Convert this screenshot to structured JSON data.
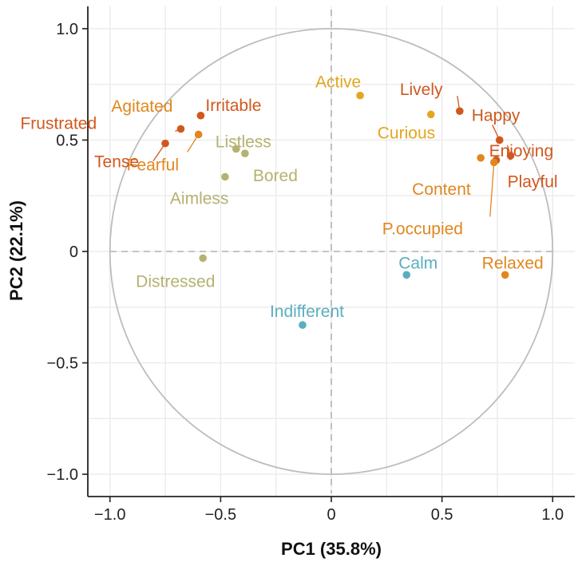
{
  "chart_data": {
    "type": "scatter",
    "title": "",
    "xlabel": "PC1 (35.8%)",
    "ylabel": "PC2 (22.1%)",
    "xlim": [
      -1.1,
      1.1
    ],
    "ylim": [
      -1.1,
      1.1
    ],
    "xticks": [
      -1.0,
      -0.5,
      0,
      0.5,
      1.0
    ],
    "xtick_labels": [
      "−1.0",
      "−0.5",
      "0",
      "0.5",
      "1.0"
    ],
    "yticks": [
      -1.0,
      -0.5,
      0,
      0.5,
      1.0
    ],
    "ytick_labels": [
      "−1.0",
      "−0.5",
      "0",
      "0.5",
      "1.0"
    ],
    "grid": true,
    "unit_circle": true,
    "reference_lines": {
      "x": 0,
      "y": 0
    },
    "colors": {
      "grid": "#ebebeb",
      "circle": "#bdbdbd",
      "refline": "#b3b3b3",
      "axis": "#222222",
      "group_red": "#d0581e",
      "group_orange": "#e0871f",
      "group_amber": "#e3a620",
      "group_sage": "#b4b270",
      "group_teal": "#5aaec0"
    },
    "points": [
      {
        "label": "Agitated",
        "x": -0.59,
        "y": 0.61,
        "color": "#e0871f"
      },
      {
        "label": "Irritable",
        "x": -0.59,
        "y": 0.61,
        "color": "#d0581e"
      },
      {
        "label": "Frustrated",
        "x": -0.68,
        "y": 0.55,
        "color": "#d0581e"
      },
      {
        "label": "Fearful",
        "x": -0.6,
        "y": 0.525,
        "color": "#e0871f"
      },
      {
        "label": "Tense",
        "x": -0.75,
        "y": 0.485,
        "color": "#d0581e"
      },
      {
        "label": "Listless",
        "x": -0.43,
        "y": 0.46,
        "color": "#b4b270"
      },
      {
        "label": "Bored",
        "x": -0.39,
        "y": 0.44,
        "color": "#b4b270"
      },
      {
        "label": "Aimless",
        "x": -0.48,
        "y": 0.335,
        "color": "#b4b270"
      },
      {
        "label": "Distressed",
        "x": -0.58,
        "y": -0.03,
        "color": "#b4b270"
      },
      {
        "label": "Active",
        "x": 0.13,
        "y": 0.7,
        "color": "#e3a620"
      },
      {
        "label": "Lively",
        "x": 0.58,
        "y": 0.63,
        "color": "#d0581e"
      },
      {
        "label": "Curious",
        "x": 0.45,
        "y": 0.615,
        "color": "#e3a620"
      },
      {
        "label": "Happy",
        "x": 0.76,
        "y": 0.5,
        "color": "#d0581e"
      },
      {
        "label": "Enjoying",
        "x": 0.81,
        "y": 0.43,
        "color": "#d0581e"
      },
      {
        "label": "Content",
        "x": 0.675,
        "y": 0.42,
        "color": "#e0871f"
      },
      {
        "label": "Playful",
        "x": 0.745,
        "y": 0.41,
        "color": "#d0581e"
      },
      {
        "label": "P.occupied",
        "x": 0.735,
        "y": 0.4,
        "color": "#e0871f"
      },
      {
        "label": "Calm",
        "x": 0.34,
        "y": -0.105,
        "color": "#5aaec0"
      },
      {
        "label": "Relaxed",
        "x": 0.785,
        "y": -0.105,
        "color": "#e0871f"
      },
      {
        "label": "Indifferent",
        "x": -0.13,
        "y": -0.33,
        "color": "#5aaec0"
      }
    ]
  }
}
